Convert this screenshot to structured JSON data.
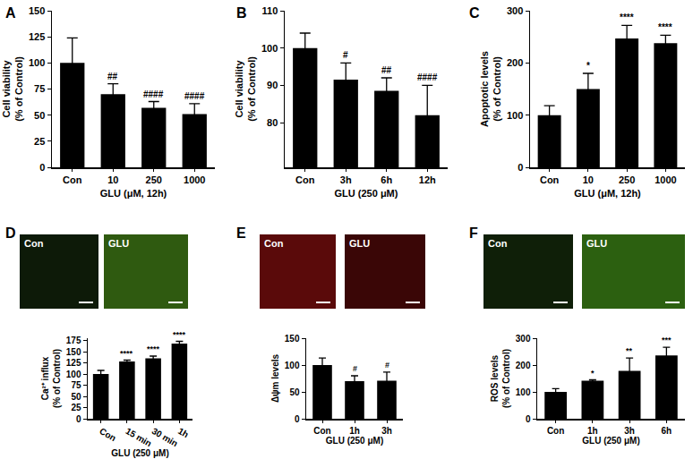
{
  "chart_data": [
    {
      "type": "bar",
      "panel": "A",
      "color": "#000000",
      "categories": [
        "Con",
        "10",
        "250",
        "1000"
      ],
      "values": [
        100,
        70,
        57,
        51
      ],
      "errors": [
        24,
        10,
        6,
        10
      ],
      "significance": [
        null,
        "##",
        "####",
        "####"
      ],
      "xlabel": "GLU (μM, 12h)",
      "ylabel": "Cell viability\n(% of Control)",
      "ylim": [
        0,
        150
      ],
      "yticks": [
        0,
        25,
        50,
        75,
        100,
        125,
        150
      ]
    },
    {
      "type": "bar",
      "panel": "B",
      "color": "#000000",
      "categories": [
        "Con",
        "3h",
        "6h",
        "12h"
      ],
      "values": [
        100,
        91.5,
        88.5,
        82
      ],
      "errors": [
        4,
        4.5,
        3.5,
        8
      ],
      "significance": [
        null,
        "#",
        "##",
        "####"
      ],
      "xlabel": "GLU (250 μM)",
      "ylabel": "Cell viability\n(% of Control)",
      "ylim": [
        68,
        110
      ],
      "yticks": [
        80,
        90,
        100,
        110
      ]
    },
    {
      "type": "bar",
      "panel": "C",
      "color": "#000000",
      "categories": [
        "Con",
        "10",
        "250",
        "1000"
      ],
      "values": [
        100,
        150,
        247,
        238
      ],
      "errors": [
        18,
        30,
        25,
        15
      ],
      "significance": [
        null,
        "*",
        "****",
        "****"
      ],
      "xlabel": "GLU (μM, 12h)",
      "ylabel": "Apoptotic levels\n(% of Control)",
      "ylim": [
        0,
        300
      ],
      "yticks": [
        0,
        100,
        200,
        300
      ]
    },
    {
      "type": "bar",
      "panel": "D",
      "color": "#000000",
      "categories": [
        "Con",
        "15 min",
        "30 min",
        "1h"
      ],
      "values": [
        100,
        128,
        135,
        168
      ],
      "errors": [
        8,
        3,
        5,
        5
      ],
      "significance": [
        null,
        "****",
        "****",
        "****"
      ],
      "xlabel": "GLU (250 μM)",
      "ylabel": "Ca²⁺ influx\n(% of Control)",
      "ylim": [
        0,
        180
      ],
      "yticks": [
        0,
        25,
        50,
        75,
        100,
        125,
        150,
        175
      ],
      "images": [
        {
          "label": "Con",
          "color": "#0d1a08"
        },
        {
          "label": "GLU",
          "color": "#2f5a10"
        }
      ]
    },
    {
      "type": "bar",
      "panel": "E",
      "color": "#000000",
      "categories": [
        "Con",
        "1h",
        "3h"
      ],
      "values": [
        100,
        70,
        71
      ],
      "errors": [
        13,
        10,
        16
      ],
      "significance": [
        null,
        "#",
        "#"
      ],
      "xlabel": "GLU (250 μM)",
      "ylabel": "Δψm levels",
      "ylim": [
        0,
        150
      ],
      "yticks": [
        0,
        50,
        100,
        150
      ],
      "images": [
        {
          "label": "Con",
          "color": "#5a0a0a"
        },
        {
          "label": "GLU",
          "color": "#3a0606"
        }
      ]
    },
    {
      "type": "bar",
      "panel": "F",
      "color": "#000000",
      "categories": [
        "Con",
        "1h",
        "3h",
        "6h"
      ],
      "values": [
        100,
        142,
        178,
        236
      ],
      "errors": [
        12,
        3,
        48,
        30
      ],
      "significance": [
        null,
        "*",
        "**",
        "***"
      ],
      "xlabel": "GLU (250 μM)",
      "ylabel": "ROS levels\n(% of Control)",
      "ylim": [
        0,
        300
      ],
      "yticks": [
        0,
        100,
        200,
        300
      ],
      "images": [
        {
          "label": "Con",
          "color": "#0f1f08"
        },
        {
          "label": "GLU",
          "color": "#2c6010"
        }
      ]
    }
  ]
}
